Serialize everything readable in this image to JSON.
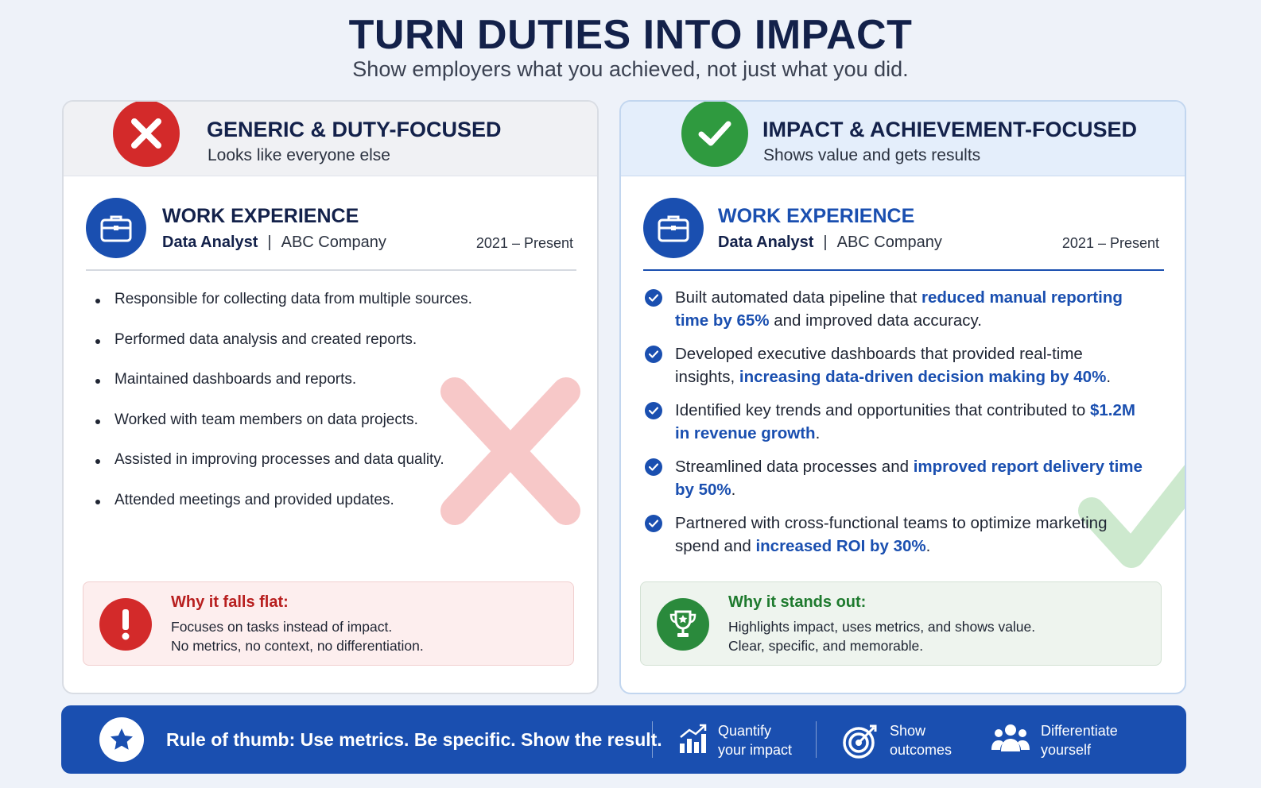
{
  "header": {
    "title": "TURN DUTIES INTO IMPACT",
    "subtitle": "Show employers what you achieved, not just what you did."
  },
  "bad_panel": {
    "title": "GENERIC & DUTY-FOCUSED",
    "subtitle": "Looks like everyone else",
    "section_title": "WORK EXPERIENCE",
    "role": "Data Analyst",
    "separator": "|",
    "company": "ABC Company",
    "dates": "2021 – Present",
    "bullets": [
      "Responsible for collecting data from multiple sources.",
      "Performed data analysis and created reports.",
      "Maintained dashboards and reports.",
      "Worked with team members on data projects.",
      "Assisted in improving processes and data quality.",
      "Attended meetings and provided updates."
    ],
    "why_title": "Why it falls flat:",
    "why_line1": "Focuses on tasks instead of impact.",
    "why_line2": "No metrics, no context, no differentiation.",
    "color": "#d32a2a"
  },
  "good_panel": {
    "title": "IMPACT & ACHIEVEMENT-FOCUSED",
    "subtitle": "Shows value and gets results",
    "section_title": "WORK EXPERIENCE",
    "role": "Data Analyst",
    "separator": "|",
    "company": "ABC Company",
    "dates": "2021 – Present",
    "items": [
      {
        "pre": "Built automated data pipeline that ",
        "hl": "reduced manual reporting time by 65%",
        "post": " and improved data accuracy."
      },
      {
        "pre": "Developed executive dashboards that provided real-time insights, ",
        "hl": "increasing data-driven decision making by 40%",
        "post": "."
      },
      {
        "pre": "Identified key trends and opportunities that contributed to ",
        "hl": "$1.2M in revenue growth",
        "post": "."
      },
      {
        "pre": "Streamlined data processes and ",
        "hl": "improved report delivery time by 50%",
        "post": "."
      },
      {
        "pre": "Partnered with cross-functional teams to optimize marketing spend and ",
        "hl": "increased ROI by 30%",
        "post": "."
      }
    ],
    "why_title": "Why it stands out:",
    "why_line1": "Highlights impact, uses metrics, and shows value.",
    "why_line2": "Clear, specific, and memorable.",
    "color": "#2f9a3f",
    "accent": "#1a4fb0"
  },
  "footer": {
    "rule": "Rule of thumb: Use metrics. Be specific. Show the result.",
    "features": [
      {
        "icon": "bar-chart-icon",
        "line1": "Quantify",
        "line2": "your impact"
      },
      {
        "icon": "target-icon",
        "line1": "Show",
        "line2": "outcomes"
      },
      {
        "icon": "people-icon",
        "line1": "Differentiate",
        "line2": "yourself"
      }
    ]
  }
}
